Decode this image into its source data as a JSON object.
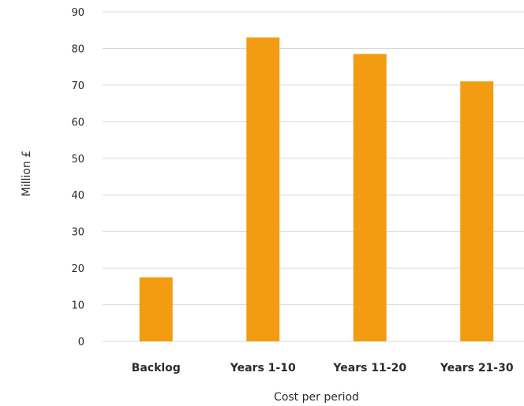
{
  "chart_data": {
    "type": "bar",
    "categories": [
      "Backlog",
      "Years 1-10",
      "Years 11-20",
      "Years 21-30"
    ],
    "values": [
      17.5,
      83,
      78.5,
      71
    ],
    "xlabel": "Cost per period",
    "ylabel": "Million £",
    "ylim": [
      0,
      90
    ],
    "yticks": [
      0,
      10,
      20,
      30,
      40,
      50,
      60,
      70,
      80,
      90
    ],
    "grid": true,
    "colors": {
      "bar": "#F39C12",
      "grid": "#d9d9d9",
      "text": "#2b2b2b"
    }
  }
}
